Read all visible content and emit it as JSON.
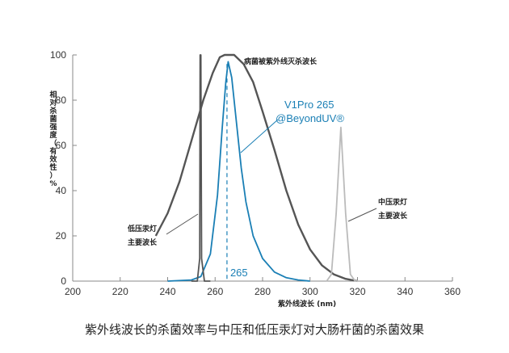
{
  "chart_data": {
    "type": "line",
    "title": "",
    "xlabel": "紫外线波长 (nm)",
    "ylabel": "相对杀菌强度（有效性）%",
    "xlim": [
      200,
      360
    ],
    "ylim": [
      0,
      100
    ],
    "xticks": [
      200,
      220,
      240,
      260,
      280,
      300,
      320,
      340,
      360
    ],
    "yticks": [
      0,
      20,
      40,
      60,
      80,
      100
    ],
    "grid": false,
    "series": [
      {
        "name": "病菌被紫外线灭杀波长",
        "color": "#555555",
        "points": [
          [
            235,
            20
          ],
          [
            240,
            30
          ],
          [
            245,
            44
          ],
          [
            250,
            62
          ],
          [
            255,
            80
          ],
          [
            259,
            92
          ],
          [
            262,
            99
          ],
          [
            264,
            100
          ],
          [
            268,
            100
          ],
          [
            272,
            96
          ],
          [
            276,
            88
          ],
          [
            280,
            75
          ],
          [
            285,
            58
          ],
          [
            290,
            40
          ],
          [
            295,
            25
          ],
          [
            300,
            14
          ],
          [
            305,
            7
          ],
          [
            310,
            3
          ],
          [
            315,
            1
          ],
          [
            320,
            0
          ]
        ]
      },
      {
        "name": "V1Pro 265 @BeyondUV®",
        "color": "#1a7fb5",
        "points": [
          [
            240,
            0
          ],
          [
            250,
            0.5
          ],
          [
            254,
            2
          ],
          [
            258,
            12
          ],
          [
            261,
            38
          ],
          [
            263,
            68
          ],
          [
            264.5,
            88
          ],
          [
            265.5,
            97
          ],
          [
            267,
            90
          ],
          [
            269,
            70
          ],
          [
            271,
            50
          ],
          [
            273,
            35
          ],
          [
            276,
            20
          ],
          [
            280,
            10
          ],
          [
            285,
            4
          ],
          [
            290,
            1.5
          ],
          [
            295,
            0.5
          ],
          [
            300,
            0
          ]
        ]
      },
      {
        "name": "低压汞灯 主要波长",
        "color": "#555555",
        "points": [
          [
            250,
            0
          ],
          [
            252.5,
            0
          ],
          [
            253.5,
            10
          ],
          [
            253.7,
            100
          ],
          [
            254,
            100
          ],
          [
            254.3,
            10
          ],
          [
            255.5,
            0
          ],
          [
            258,
            0
          ]
        ]
      },
      {
        "name": "中压汞灯 主要波长",
        "color": "#bbbbbb",
        "points": [
          [
            300,
            0
          ],
          [
            307,
            0
          ],
          [
            309,
            3
          ],
          [
            311,
            30
          ],
          [
            313,
            68
          ],
          [
            315,
            30
          ],
          [
            317,
            3
          ],
          [
            319,
            0
          ],
          [
            322,
            0
          ]
        ]
      }
    ],
    "marker_line": {
      "x": 265,
      "label": "265",
      "color": "#1a7fb5"
    },
    "annotations": {
      "germicidal": "病菌被紫外线灭杀波长",
      "product_line1": "V1Pro 265",
      "product_line2": "@BeyondUV®",
      "low_pressure_line1": "低压汞灯",
      "low_pressure_line2": "主要波长",
      "medium_pressure_line1": "中压汞灯",
      "medium_pressure_line2": "主要波长"
    }
  },
  "caption": "紫外线波长的杀菌效率与中压和低压汞灯对大肠杆菌的杀菌效果"
}
